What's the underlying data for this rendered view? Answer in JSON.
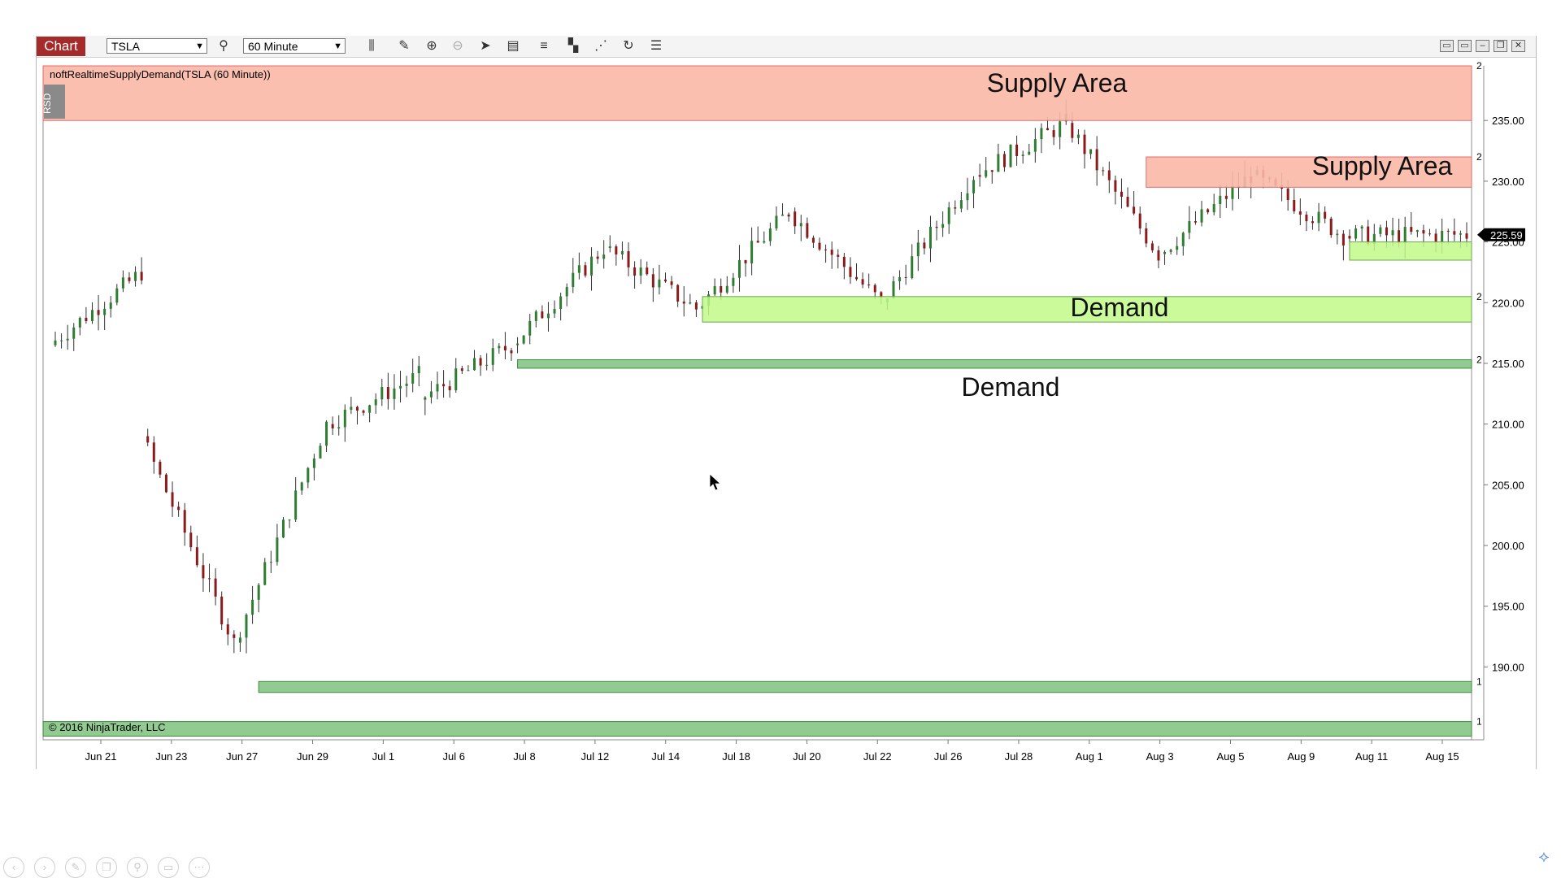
{
  "toolbar": {
    "chart_tab": "Chart",
    "instrument": "TSLA",
    "interval": "60 Minute"
  },
  "indicator_label": "noftRealtimeSupplyDemand(TSLA (60 Minute))",
  "indicator_tag": "RSD",
  "copyright": "© 2016 NinjaTrader, LLC",
  "current_price": "225.59",
  "colors": {
    "supply_fill": "#f9b8a6",
    "supply_border": "#e36c6c",
    "demand_light": "#c2f98a",
    "demand_dark": "#7ec27e",
    "up_candle": "#2e7d32",
    "down_candle": "#8b1a1a",
    "tab_red": "#a52a2a"
  },
  "zones": [
    {
      "type": "supply",
      "label": "Supply Area",
      "low": 235.0,
      "high": 239.5,
      "from_index": 0,
      "count": "2"
    },
    {
      "type": "supply",
      "label": "Supply Area",
      "low": 229.5,
      "high": 232.0,
      "from_index": 177,
      "count": "2"
    },
    {
      "type": "demand",
      "label": "",
      "low": 223.5,
      "high": 225.0,
      "from_index": 210,
      "count": ""
    },
    {
      "type": "demand",
      "label": "Demand",
      "low": 218.4,
      "high": 220.5,
      "from_index": 105,
      "count": "2"
    },
    {
      "type": "demand",
      "label": "Demand",
      "low": 214.6,
      "high": 215.3,
      "from_index": 75,
      "count": "2"
    },
    {
      "type": "demand",
      "label": "",
      "low": 187.9,
      "high": 188.8,
      "from_index": 33,
      "count": "1"
    },
    {
      "type": "demand",
      "label": "",
      "low": 184.3,
      "high": 185.5,
      "from_index": 0,
      "count": "1"
    }
  ],
  "chart_data": {
    "type": "candlestick",
    "title": "noftRealtimeSupplyDemand(TSLA (60 Minute))",
    "x_tick_labels": [
      "Jun 21",
      "Jun 23",
      "Jun 27",
      "Jun 29",
      "Jul 1",
      "Jul 6",
      "Jul 8",
      "Jul 12",
      "Jul 14",
      "Jul 18",
      "Jul 20",
      "Jul 22",
      "Jul 26",
      "Jul 28",
      "Aug 1",
      "Aug 3",
      "Aug 5",
      "Aug 9",
      "Aug 11",
      "Aug 15"
    ],
    "y_ticks": [
      "235.00",
      "230.00",
      "225.00",
      "220.00",
      "215.00",
      "210.00",
      "205.00",
      "200.00",
      "195.00",
      "190.00"
    ],
    "ylim": [
      184.0,
      239.5
    ],
    "last_price": 225.59,
    "session_anchors": [
      {
        "session": 0,
        "open": 216.5,
        "close": 222.5
      },
      {
        "session": 1,
        "open": 209.0,
        "close": 192.0
      },
      {
        "session": 2,
        "open": 192.0,
        "close": 210.0
      },
      {
        "session": 3,
        "open": 210.0,
        "close": 214.0
      },
      {
        "session": 4,
        "open": 212.0,
        "close": 216.5
      },
      {
        "session": 5,
        "open": 216.5,
        "close": 224.5
      },
      {
        "session": 6,
        "open": 224.5,
        "close": 219.5
      },
      {
        "session": 7,
        "open": 219.5,
        "close": 227.5
      },
      {
        "session": 8,
        "open": 227.5,
        "close": 220.0
      },
      {
        "session": 9,
        "open": 220.0,
        "close": 230.5
      },
      {
        "session": 10,
        "open": 230.5,
        "close": 234.8
      },
      {
        "session": 11,
        "open": 234.8,
        "close": 224.0
      },
      {
        "session": 12,
        "open": 224.0,
        "close": 230.5
      },
      {
        "session": 13,
        "open": 230.5,
        "close": 225.5
      },
      {
        "session": 14,
        "open": 225.5,
        "close": 225.6
      }
    ]
  }
}
